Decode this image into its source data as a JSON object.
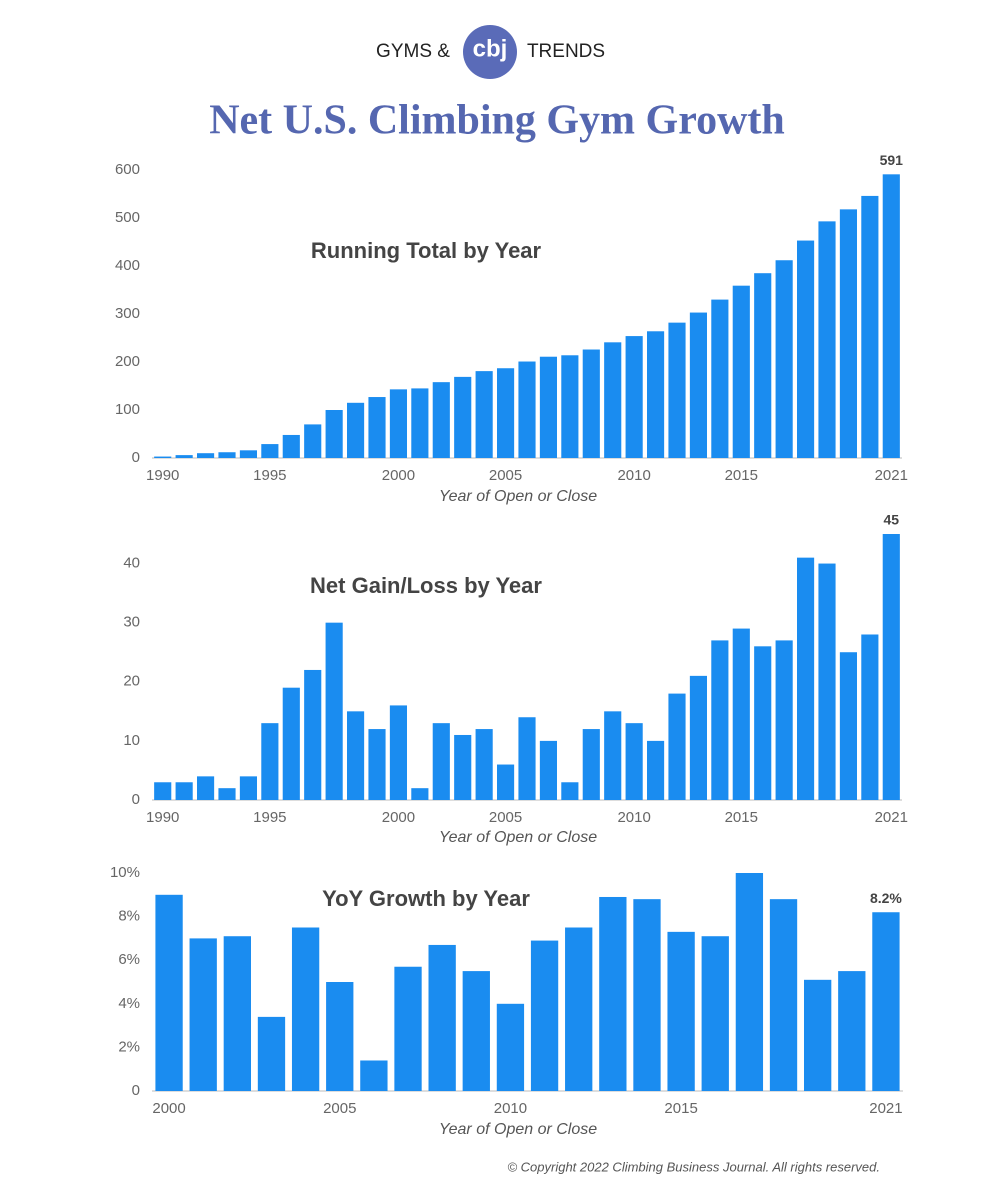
{
  "header": {
    "left": "GYMS &",
    "logo": "cbj",
    "right": "TRENDS",
    "title": "Net U.S. Climbing Gym Growth",
    "copyright": "© Copyright 2022 Climbing Business Journal. All rights reserved."
  },
  "chart_data": [
    {
      "type": "bar",
      "subtitle": "Running Total by Year",
      "x_label": "Year of Open or Close",
      "color": "#1a8cf0",
      "categories": [
        "1990",
        null,
        null,
        null,
        null,
        "1995",
        null,
        null,
        null,
        null,
        null,
        "2000",
        null,
        null,
        null,
        null,
        "2005",
        null,
        null,
        null,
        null,
        null,
        "2010",
        null,
        null,
        null,
        null,
        "2015",
        null,
        null,
        null,
        null,
        null,
        null,
        "2021"
      ],
      "values": [
        3,
        6,
        10,
        12,
        16,
        29,
        48,
        70,
        100,
        115,
        127,
        143,
        145,
        158,
        169,
        181,
        187,
        201,
        211,
        214,
        226,
        241,
        254,
        264,
        282,
        303,
        330,
        359,
        385,
        412,
        453,
        493,
        518,
        546,
        591
      ],
      "value_labels": [
        null,
        null,
        null,
        null,
        null,
        null,
        null,
        null,
        null,
        null,
        null,
        null,
        null,
        null,
        null,
        null,
        null,
        null,
        null,
        null,
        null,
        null,
        null,
        null,
        null,
        null,
        null,
        null,
        null,
        null,
        null,
        null,
        null,
        null,
        "591"
      ],
      "ylim": [
        0,
        600
      ],
      "yticks": [
        0,
        100,
        200,
        300,
        400,
        500,
        600
      ]
    },
    {
      "type": "bar",
      "subtitle": "Net Gain/Loss by Year",
      "x_label": "Year of Open or Close",
      "color": "#1a8cf0",
      "categories": [
        "1990",
        null,
        null,
        null,
        null,
        "1995",
        null,
        null,
        null,
        null,
        null,
        "2000",
        null,
        null,
        null,
        null,
        "2005",
        null,
        null,
        null,
        null,
        null,
        "2010",
        null,
        null,
        null,
        null,
        "2015",
        null,
        null,
        null,
        null,
        null,
        null,
        "2021"
      ],
      "values": [
        3,
        3,
        4,
        2,
        4,
        13,
        19,
        22,
        30,
        15,
        12,
        16,
        2,
        13,
        11,
        12,
        6,
        14,
        10,
        3,
        12,
        15,
        13,
        10,
        18,
        21,
        27,
        29,
        26,
        27,
        41,
        40,
        25,
        28,
        45
      ],
      "value_labels": [
        null,
        null,
        null,
        null,
        null,
        null,
        null,
        null,
        null,
        null,
        null,
        null,
        null,
        null,
        null,
        null,
        null,
        null,
        null,
        null,
        null,
        null,
        null,
        null,
        null,
        null,
        null,
        null,
        null,
        null,
        null,
        null,
        null,
        null,
        "45"
      ],
      "ylim": [
        0,
        45
      ],
      "yticks": [
        0,
        10,
        20,
        30,
        40
      ]
    },
    {
      "type": "bar",
      "subtitle": "YoY Growth by Year",
      "x_label": "Year of Open or Close",
      "color": "#1a8cf0",
      "categories": [
        "2000",
        null,
        null,
        null,
        null,
        "2005",
        null,
        null,
        null,
        null,
        "2010",
        null,
        null,
        null,
        null,
        "2015",
        null,
        null,
        null,
        null,
        null,
        "2021"
      ],
      "values": [
        9.0,
        7.0,
        7.1,
        3.4,
        7.5,
        5.0,
        1.4,
        5.7,
        6.7,
        5.5,
        4.0,
        6.9,
        7.5,
        8.9,
        8.8,
        7.3,
        7.1,
        10.0,
        8.8,
        5.1,
        5.5,
        8.2
      ],
      "value_labels": [
        null,
        null,
        null,
        null,
        null,
        null,
        null,
        null,
        null,
        null,
        null,
        null,
        null,
        null,
        null,
        null,
        null,
        null,
        null,
        null,
        null,
        "8.2%"
      ],
      "ylim": [
        0,
        10
      ],
      "yticks": [
        0,
        {
          "value": 2,
          "label": "2%"
        },
        {
          "value": 4,
          "label": "4%"
        },
        {
          "value": 6,
          "label": "6%"
        },
        {
          "value": 8,
          "label": "8%"
        },
        {
          "value": 10,
          "label": "10%"
        }
      ]
    }
  ]
}
